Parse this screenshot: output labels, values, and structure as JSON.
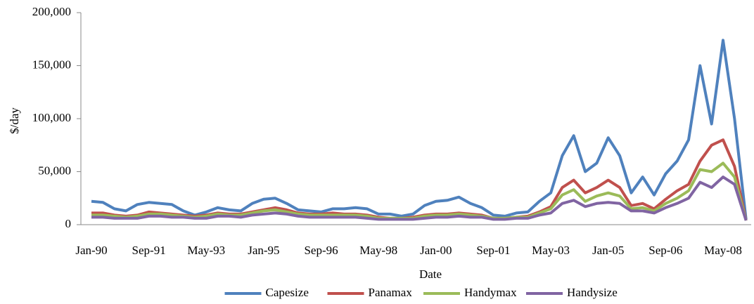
{
  "chart_data": {
    "type": "line",
    "x_label": "Date",
    "y_label": "$/day",
    "categories": [
      "Jan-90",
      null,
      null,
      null,
      null,
      "Sep-91",
      null,
      null,
      null,
      null,
      "May-93",
      null,
      null,
      null,
      null,
      "Jan-95",
      null,
      null,
      null,
      null,
      "Sep-96",
      null,
      null,
      null,
      null,
      "May-98",
      null,
      null,
      null,
      null,
      "Jan-00",
      null,
      null,
      null,
      null,
      "Sep-01",
      null,
      null,
      null,
      null,
      "May-03",
      null,
      null,
      null,
      null,
      "Jan-05",
      null,
      null,
      null,
      null,
      "Sep-06",
      null,
      null,
      null,
      null,
      "May-08",
      null,
      null
    ],
    "series": [
      {
        "name": "Capesize",
        "color": "#4f81bd",
        "values": [
          22000,
          21000,
          15000,
          13000,
          19000,
          21000,
          20000,
          19000,
          13000,
          9000,
          12000,
          16000,
          14000,
          13000,
          20000,
          24000,
          25000,
          20000,
          14000,
          13000,
          12000,
          15000,
          15000,
          16000,
          15000,
          10000,
          10000,
          8000,
          10000,
          18000,
          22000,
          23000,
          26000,
          20000,
          16000,
          9000,
          8000,
          11000,
          12000,
          22000,
          30000,
          65000,
          84000,
          50000,
          58000,
          82000,
          65000,
          30000,
          45000,
          28000,
          48000,
          60000,
          80000,
          150000,
          95000,
          174000,
          100000,
          5000
        ]
      },
      {
        "name": "Panamax",
        "color": "#c0504d",
        "values": [
          11000,
          11000,
          9000,
          8000,
          9000,
          12000,
          11000,
          10000,
          9000,
          8000,
          9000,
          11000,
          10000,
          10000,
          12000,
          14000,
          16000,
          14000,
          11000,
          10000,
          10000,
          11000,
          10000,
          10000,
          9000,
          7000,
          6000,
          6000,
          7000,
          9000,
          10000,
          10000,
          11000,
          10000,
          9000,
          6000,
          6000,
          7000,
          8000,
          12000,
          17000,
          35000,
          42000,
          30000,
          35000,
          42000,
          35000,
          18000,
          20000,
          15000,
          24000,
          32000,
          38000,
          60000,
          75000,
          80000,
          55000,
          4000
        ]
      },
      {
        "name": "Handymax",
        "color": "#9bbb59",
        "values": [
          9000,
          9000,
          8000,
          7000,
          8000,
          10000,
          10000,
          9000,
          8000,
          7000,
          8000,
          10000,
          9000,
          9000,
          11000,
          13000,
          14000,
          12000,
          10000,
          9000,
          9000,
          9000,
          9000,
          9000,
          8000,
          6000,
          6000,
          6000,
          6000,
          8000,
          9000,
          9000,
          10000,
          9000,
          8000,
          6000,
          6000,
          7000,
          7000,
          11000,
          15000,
          28000,
          33000,
          22000,
          27000,
          30000,
          27000,
          15000,
          16000,
          13000,
          20000,
          25000,
          32000,
          52000,
          50000,
          58000,
          45000,
          4000
        ]
      },
      {
        "name": "Handysize",
        "color": "#8064a2",
        "values": [
          7000,
          7000,
          6000,
          6000,
          6000,
          8000,
          8000,
          7000,
          7000,
          6000,
          6000,
          8000,
          8000,
          7000,
          9000,
          10000,
          11000,
          10000,
          8000,
          7000,
          7000,
          7000,
          7000,
          7000,
          6000,
          5000,
          5000,
          5000,
          5000,
          6000,
          7000,
          7000,
          8000,
          7000,
          7000,
          5000,
          5000,
          6000,
          6000,
          9000,
          11000,
          20000,
          23000,
          17000,
          20000,
          21000,
          20000,
          13000,
          13000,
          11000,
          16000,
          20000,
          25000,
          40000,
          35000,
          45000,
          38000,
          4000
        ]
      }
    ],
    "ylim": [
      0,
      200000
    ],
    "yticks": [
      0,
      {
        "value": 50000,
        "label": "50,000"
      },
      {
        "value": 100000,
        "label": "100,000"
      },
      {
        "value": 150000,
        "label": "150,000"
      },
      {
        "value": 200000,
        "label": "200,000"
      }
    ],
    "grid": false,
    "legend": "bottom"
  }
}
